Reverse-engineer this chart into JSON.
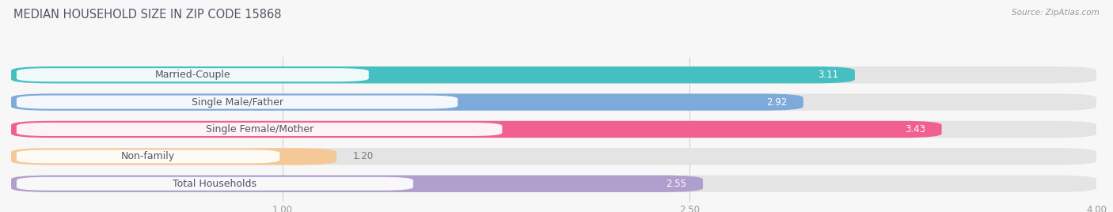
{
  "title": "MEDIAN HOUSEHOLD SIZE IN ZIP CODE 15868",
  "source": "Source: ZipAtlas.com",
  "categories": [
    "Married-Couple",
    "Single Male/Father",
    "Single Female/Mother",
    "Non-family",
    "Total Households"
  ],
  "values": [
    3.11,
    2.92,
    3.43,
    1.2,
    2.55
  ],
  "bar_colors": [
    "#45bfbf",
    "#7eaadb",
    "#f06090",
    "#f5c897",
    "#b09fcc"
  ],
  "xlim": [
    0,
    4.0
  ],
  "xticks": [
    1.0,
    2.5,
    4.0
  ],
  "xtick_labels": [
    "1.00",
    "2.50",
    "4.00"
  ],
  "background_color": "#f7f7f7",
  "bar_bg_color": "#e4e4e4",
  "title_fontsize": 10.5,
  "label_fontsize": 9,
  "value_fontsize": 8.5,
  "bar_height": 0.62,
  "figsize": [
    14.06,
    2.68
  ],
  "dpi": 100
}
